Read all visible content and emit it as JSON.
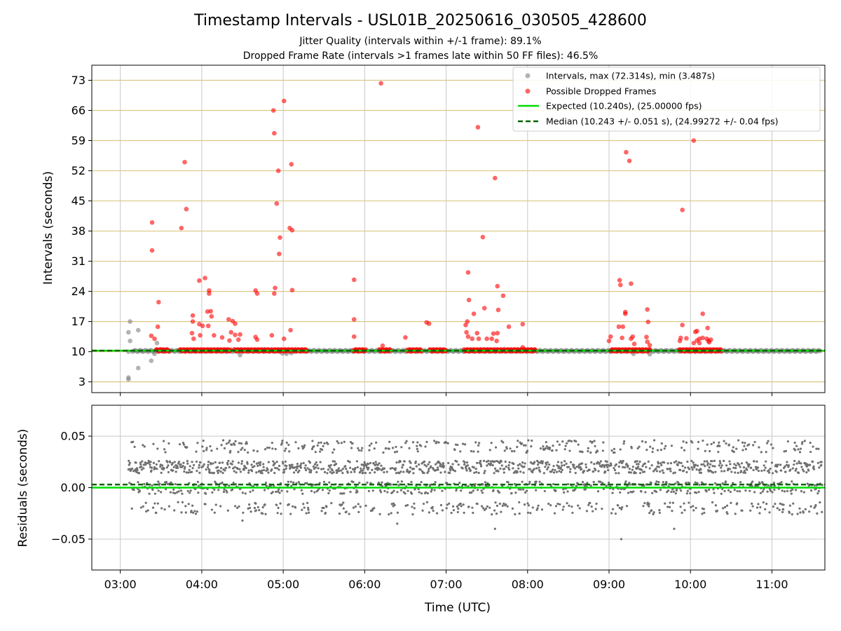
{
  "chart_data": {
    "type": "scatter",
    "title": "Timestamp Intervals - USL01B_20250616_030505_428600",
    "subtitle_1": "Jitter Quality (intervals within +/-1 frame): 89.1%",
    "subtitle_2": "Dropped Frame Rate (intervals >1 frames late within 50 FF files): 46.5%",
    "xlabel": "Time (UTC)",
    "x_ticks": [
      "03:00",
      "04:00",
      "05:00",
      "06:00",
      "07:00",
      "08:00",
      "09:00",
      "10:00",
      "11:00"
    ],
    "x_range_hours": [
      2.65,
      11.65
    ],
    "top_panel": {
      "ylabel": "Intervals (seconds)",
      "y_ticks": [
        "3",
        "10",
        "17",
        "24",
        "31",
        "38",
        "45",
        "52",
        "59",
        "66",
        "73"
      ],
      "ylim": [
        0.5,
        76.5
      ],
      "expected_interval": 10.24,
      "median_interval": 10.243,
      "legend": {
        "position": "top-right",
        "entries": [
          "Intervals, max (72.314s), min (3.487s)",
          "Possible Dropped Frames",
          "Expected (10.240s), (25.00000 fps)",
          "Median (10.243 +/- 0.051 s), (24.99272 +/- 0.04 fps)"
        ]
      },
      "normal_intervals": [
        [
          3.1,
          3.6
        ],
        [
          3.1,
          4.0
        ],
        [
          3.1,
          10.0
        ],
        [
          3.12,
          17.0
        ],
        [
          3.1,
          14.5
        ],
        [
          3.12,
          12.5
        ],
        [
          3.22,
          6.2
        ],
        [
          3.22,
          15.0
        ],
        [
          3.38,
          7.9
        ],
        [
          3.42,
          9.5
        ],
        [
          3.45,
          12.0
        ],
        [
          3.5,
          10.5
        ],
        [
          4.47,
          9.2
        ],
        [
          4.99,
          9.6
        ],
        [
          5.04,
          9.5
        ],
        [
          5.1,
          9.7
        ],
        [
          9.3,
          9.5
        ],
        [
          9.5,
          9.4
        ]
      ],
      "dropped_frames": [
        [
          3.39,
          40.0
        ],
        [
          3.39,
          33.5
        ],
        [
          3.47,
          21.5
        ],
        [
          3.46,
          15.8
        ],
        [
          3.38,
          13.7
        ],
        [
          3.42,
          13.0
        ],
        [
          3.75,
          38.7
        ],
        [
          3.79,
          54.0
        ],
        [
          3.81,
          43.1
        ],
        [
          3.89,
          18.4
        ],
        [
          3.89,
          17.0
        ],
        [
          3.88,
          14.3
        ],
        [
          3.9,
          13.0
        ],
        [
          3.97,
          26.5
        ],
        [
          3.97,
          16.4
        ],
        [
          3.98,
          13.8
        ],
        [
          4.01,
          16.0
        ],
        [
          4.04,
          27.1
        ],
        [
          4.07,
          19.3
        ],
        [
          4.09,
          24.2
        ],
        [
          4.09,
          23.5
        ],
        [
          4.11,
          19.4
        ],
        [
          4.12,
          18.2
        ],
        [
          4.08,
          16.0
        ],
        [
          4.15,
          13.8
        ],
        [
          4.25,
          13.3
        ],
        [
          4.33,
          17.5
        ],
        [
          4.38,
          17.1
        ],
        [
          4.36,
          14.5
        ],
        [
          4.41,
          16.5
        ],
        [
          4.41,
          13.9
        ],
        [
          4.34,
          12.6
        ],
        [
          4.45,
          12.8
        ],
        [
          4.47,
          14.0
        ],
        [
          4.66,
          24.2
        ],
        [
          4.68,
          23.5
        ],
        [
          4.66,
          13.4
        ],
        [
          4.68,
          12.8
        ],
        [
          4.86,
          13.8
        ],
        [
          4.88,
          66.0
        ],
        [
          4.89,
          60.7
        ],
        [
          4.9,
          24.8
        ],
        [
          4.89,
          23.5
        ],
        [
          4.92,
          44.4
        ],
        [
          4.94,
          52.0
        ],
        [
          4.96,
          36.5
        ],
        [
          4.95,
          32.7
        ],
        [
          5.01,
          68.2
        ],
        [
          5.01,
          13.0
        ],
        [
          5.08,
          38.7
        ],
        [
          5.1,
          53.5
        ],
        [
          5.11,
          38.2
        ],
        [
          5.11,
          24.3
        ],
        [
          5.09,
          15.0
        ],
        [
          5.87,
          26.7
        ],
        [
          5.87,
          17.5
        ],
        [
          5.87,
          13.5
        ],
        [
          6.2,
          72.3
        ],
        [
          6.22,
          11.4
        ],
        [
          6.5,
          13.3
        ],
        [
          6.76,
          16.8
        ],
        [
          6.79,
          16.5
        ],
        [
          7.24,
          16.2
        ],
        [
          7.26,
          17.0
        ],
        [
          7.27,
          28.4
        ],
        [
          7.28,
          22.0
        ],
        [
          7.25,
          14.5
        ],
        [
          7.27,
          13.5
        ],
        [
          7.32,
          13.0
        ],
        [
          7.34,
          18.8
        ],
        [
          7.39,
          62.1
        ],
        [
          7.38,
          14.3
        ],
        [
          7.4,
          13.0
        ],
        [
          7.45,
          36.6
        ],
        [
          7.47,
          20.1
        ],
        [
          7.5,
          13.0
        ],
        [
          7.56,
          13.0
        ],
        [
          7.6,
          50.3
        ],
        [
          7.58,
          14.2
        ],
        [
          7.63,
          25.2
        ],
        [
          7.64,
          19.7
        ],
        [
          7.63,
          14.3
        ],
        [
          7.62,
          12.5
        ],
        [
          7.7,
          23.0
        ],
        [
          7.77,
          15.8
        ],
        [
          7.94,
          16.4
        ],
        [
          7.94,
          11.0
        ],
        [
          9.02,
          13.5
        ],
        [
          9.0,
          12.5
        ],
        [
          9.13,
          26.6
        ],
        [
          9.14,
          25.5
        ],
        [
          9.12,
          15.8
        ],
        [
          9.16,
          13.2
        ],
        [
          9.17,
          15.8
        ],
        [
          9.2,
          19.2
        ],
        [
          9.21,
          56.3
        ],
        [
          9.2,
          18.8
        ],
        [
          9.25,
          54.3
        ],
        [
          9.27,
          25.8
        ],
        [
          9.29,
          13.5
        ],
        [
          9.31,
          11.8
        ],
        [
          9.27,
          13.0
        ],
        [
          9.47,
          19.8
        ],
        [
          9.48,
          16.9
        ],
        [
          9.46,
          13.4
        ],
        [
          9.47,
          12.3
        ],
        [
          9.5,
          11.5
        ],
        [
          9.9,
          42.9
        ],
        [
          9.9,
          16.2
        ],
        [
          9.87,
          12.5
        ],
        [
          9.88,
          13.2
        ],
        [
          9.95,
          13.1
        ],
        [
          10.04,
          59.0
        ],
        [
          10.04,
          12.0
        ],
        [
          10.06,
          14.6
        ],
        [
          10.08,
          14.8
        ],
        [
          10.08,
          12.6
        ],
        [
          10.11,
          13.0
        ],
        [
          10.11,
          12.0
        ],
        [
          10.15,
          18.8
        ],
        [
          10.15,
          13.2
        ],
        [
          10.2,
          13.0
        ],
        [
          10.22,
          12.5
        ],
        [
          10.21,
          15.5
        ],
        [
          10.23,
          12.2
        ],
        [
          10.25,
          12.8
        ]
      ]
    },
    "bottom_panel": {
      "ylabel": "Residuals (seconds)",
      "y_ticks": [
        "0.05",
        "0.00",
        "−0.05"
      ],
      "ylim": [
        -0.08,
        0.08
      ],
      "expected_residual": 0.0,
      "median_residual": 0.003
    }
  }
}
